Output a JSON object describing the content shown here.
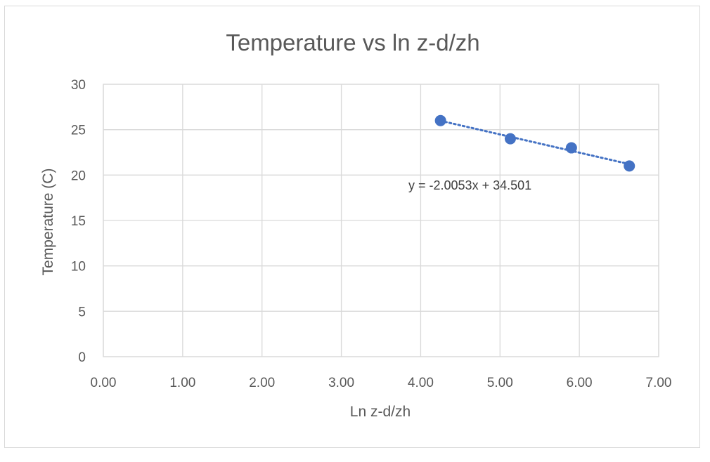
{
  "chart_data": {
    "type": "scatter",
    "title": "Temperature vs ln z-d/zh",
    "xlabel": "Ln z-d/zh",
    "ylabel": "Temperature (C)",
    "xlim": [
      0,
      7
    ],
    "ylim": [
      0,
      30
    ],
    "x_ticks": [
      "0.00",
      "1.00",
      "2.00",
      "3.00",
      "4.00",
      "5.00",
      "6.00",
      "7.00"
    ],
    "y_ticks": [
      "0",
      "5",
      "10",
      "15",
      "20",
      "25",
      "30"
    ],
    "grid": true,
    "series": [
      {
        "points": [
          {
            "x": 4.25,
            "y": 26
          },
          {
            "x": 5.13,
            "y": 24
          },
          {
            "x": 5.9,
            "y": 23
          },
          {
            "x": 6.63,
            "y": 21
          }
        ],
        "color": "#4472c4"
      }
    ],
    "trendline": {
      "type": "linear",
      "slope": -2.0053,
      "intercept": 34.501,
      "x_range": [
        4.25,
        6.63
      ],
      "equation": "y = -2.0053x + 34.501",
      "style": "dotted",
      "color": "#4472c4"
    }
  }
}
